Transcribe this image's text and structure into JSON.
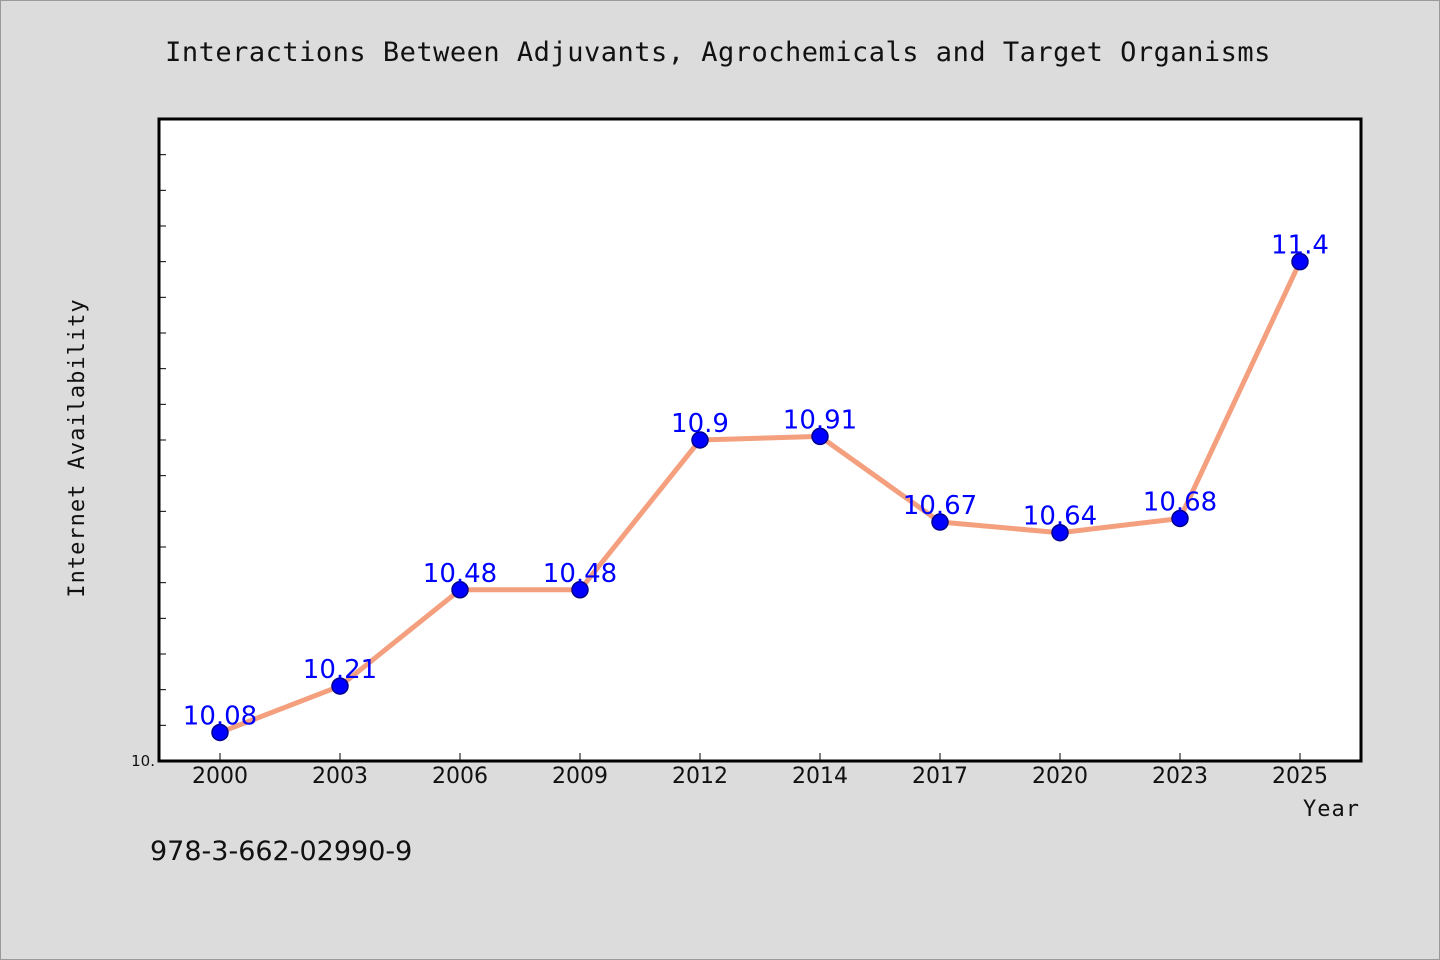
{
  "chart_data": {
    "type": "line",
    "title": "Interactions Between Adjuvants, Agrochemicals and Target Organisms",
    "xlabel": "Year",
    "ylabel": "Internet Availability",
    "categories": [
      "2000",
      "2003",
      "2006",
      "2009",
      "2012",
      "2014",
      "2017",
      "2020",
      "2023",
      "2025"
    ],
    "series": [
      {
        "values": [
          10.08,
          10.21,
          10.48,
          10.48,
          10.9,
          10.91,
          10.67,
          10.64,
          10.68,
          11.4
        ],
        "labels": [
          "10.08",
          "10.21",
          "10.48",
          "10.48",
          "10.9",
          "10.91",
          "10.67",
          "10.64",
          "10.68",
          "11.4"
        ]
      }
    ],
    "ylim": [
      10.0,
      11.8
    ],
    "ytick_labels": [
      {
        "value": 10.0,
        "label": "10."
      }
    ],
    "grid": false,
    "colors": {
      "line": "#f4a07e",
      "marker": "#0000ff",
      "marker_edge": "#00008b",
      "data_label": "#0000ff",
      "background": "#dcdcdc",
      "plot_background": "#ffffff"
    }
  },
  "footer": {
    "isbn": "978-3-662-02990-9"
  }
}
